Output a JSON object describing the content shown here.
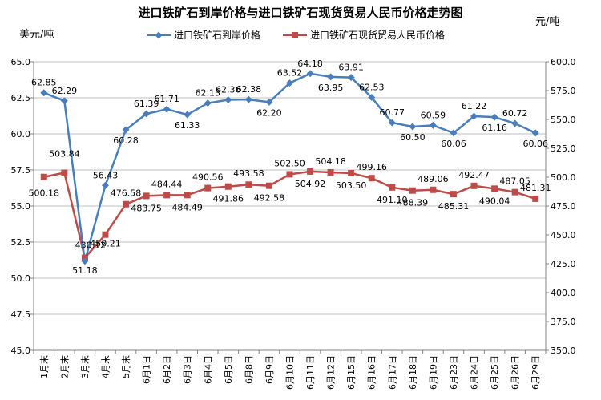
{
  "chart_data": {
    "type": "line",
    "title": "进口铁矿石到岸价格与进口铁矿石现货贸易人民币价格走势图",
    "y_left_unit": "美元/吨",
    "y_right_unit": "元/吨",
    "categories": [
      "1月末",
      "2月末",
      "3月末",
      "4月末",
      "5月末",
      "6月1日",
      "6月2日",
      "6月3日",
      "6月4日",
      "6月5日",
      "6月8日",
      "6月9日",
      "6月10日",
      "6月11日",
      "6月12日",
      "6月15日",
      "6月16日",
      "6月17日",
      "6月18日",
      "6月19日",
      "6月23日",
      "6月24日",
      "6月25日",
      "6月26日",
      "6月29日"
    ],
    "y_left": {
      "min": 45,
      "max": 65,
      "step": 2.5,
      "tick_labels": [
        "45.0",
        "47.5",
        "50.0",
        "52.5",
        "55.0",
        "57.5",
        "60.0",
        "62.5",
        "65.0"
      ]
    },
    "y_right": {
      "min": 350,
      "max": 600,
      "step": 25,
      "tick_labels": [
        "350.0",
        "375.0",
        "400.0",
        "425.0",
        "450.0",
        "475.0",
        "500.0",
        "525.0",
        "550.0",
        "575.0",
        "600.0"
      ]
    },
    "grid": true,
    "legend_position": "top",
    "series": [
      {
        "name": "进口铁矿石到岸价格",
        "axis": "left",
        "color": "#4a7ebb",
        "marker": "diamond",
        "values": [
          62.85,
          62.29,
          51.18,
          56.43,
          60.28,
          61.39,
          61.71,
          61.33,
          62.13,
          62.36,
          62.38,
          62.2,
          63.52,
          64.18,
          63.95,
          63.91,
          62.53,
          60.77,
          60.5,
          60.59,
          60.06,
          61.22,
          61.16,
          60.72,
          60.06
        ],
        "labels": [
          "62.85",
          "62.29",
          "51.18",
          "56.43",
          "60.28",
          "61.39",
          "61.71",
          "61.33",
          "62.13",
          "62.36",
          "62.38",
          "62.20",
          "63.52",
          "64.18",
          "63.95",
          "63.91",
          "62.53",
          "60.77",
          "60.50",
          "60.59",
          "60.06",
          "61.22",
          "61.16",
          "60.72",
          "60.06"
        ]
      },
      {
        "name": "进口铁矿石现货贸易人民币价格",
        "axis": "right",
        "color": "#be4b48",
        "marker": "square",
        "values": [
          500.18,
          503.84,
          430.12,
          450.21,
          476.58,
          483.75,
          484.44,
          484.49,
          490.56,
          491.86,
          493.58,
          492.58,
          502.5,
          504.92,
          504.18,
          503.5,
          499.16,
          491.1,
          488.39,
          489.06,
          485.31,
          492.47,
          490.04,
          487.05,
          481.31
        ],
        "labels": [
          "500.18",
          "503.84",
          "430.12",
          "450.21",
          "476.58",
          "483.75",
          "484.44",
          "484.49",
          "490.56",
          "491.86",
          "493.58",
          "492.58",
          "502.50",
          "504.92",
          "504.18",
          "503.50",
          "499.16",
          "491.10",
          "488.39",
          "489.06",
          "485.31",
          "492.47",
          "490.04",
          "487.05",
          "481.31"
        ]
      }
    ]
  }
}
